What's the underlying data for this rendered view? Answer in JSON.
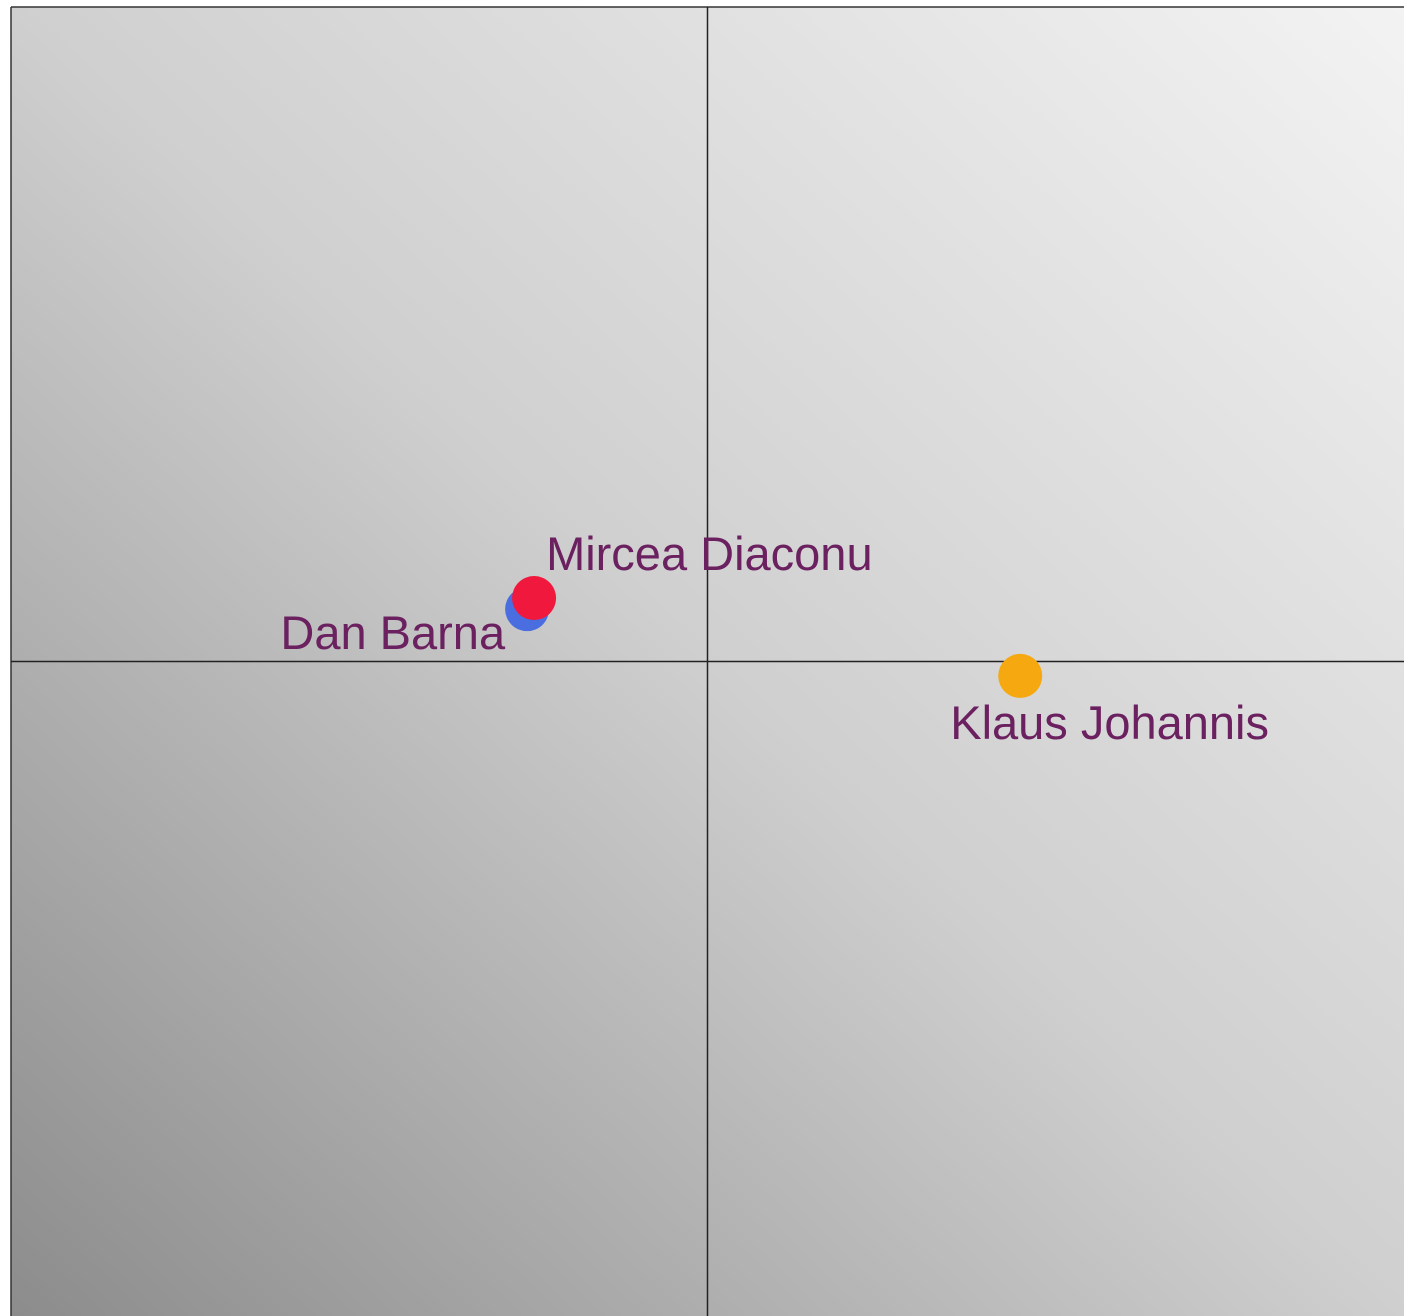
{
  "chart_data": {
    "type": "scatter",
    "xlim": [
      -10,
      10
    ],
    "ylim": [
      -10,
      10
    ],
    "series": [
      {
        "name": "Dan Barna",
        "color": "#4a6ee0",
        "x": [
          -2.59
        ],
        "values": [
          0.8
        ]
      },
      {
        "name": "Mircea Diaconu",
        "color": "#f0183c",
        "x": [
          -2.49
        ],
        "values": [
          0.97
        ]
      },
      {
        "name": "Klaus Johannis",
        "color": "#f5a80f",
        "x": [
          4.49
        ],
        "values": [
          -0.22
        ]
      }
    ]
  }
}
